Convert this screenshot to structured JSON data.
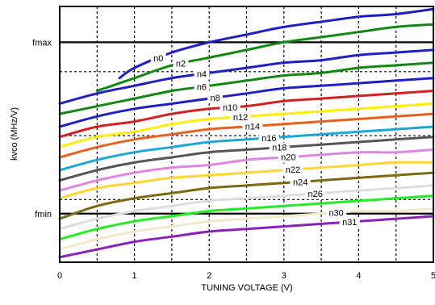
{
  "chart_data": {
    "type": "line",
    "xlabel": "TUNING VOLTAGE (V)",
    "ylabel": "kvco (MHz/V)",
    "xlim": [
      0,
      5
    ],
    "ylim": [
      0,
      1
    ],
    "x_ticks": [
      "0",
      "1",
      "2",
      "3",
      "4",
      "5"
    ],
    "grid": "dashed",
    "reference_lines": [
      {
        "label": "fmax",
        "y": 0.86
      },
      {
        "label": "fmin",
        "y": 0.19
      }
    ],
    "series": [
      {
        "name": "n0",
        "color": "#1f1fc8",
        "x": [
          0.8,
          1.0,
          1.5,
          2.0,
          2.5,
          3.0,
          3.5,
          4.0,
          4.5,
          5.0
        ],
        "y": [
          0.72,
          0.76,
          0.82,
          0.86,
          0.89,
          0.92,
          0.94,
          0.96,
          0.97,
          0.99
        ]
      },
      {
        "name": "n2",
        "color": "#118811",
        "x": [
          0.5,
          1.0,
          1.5,
          2.0,
          2.5,
          3.0,
          3.5,
          4.0,
          4.5,
          5.0
        ],
        "y": [
          0.67,
          0.72,
          0.77,
          0.8,
          0.83,
          0.86,
          0.88,
          0.9,
          0.92,
          0.93
        ]
      },
      {
        "name": "n4",
        "color": "#1f1fc8",
        "x": [
          0.0,
          0.5,
          1.0,
          1.5,
          2.0,
          2.5,
          3.0,
          3.5,
          4.0,
          4.5,
          5.0
        ],
        "y": [
          0.62,
          0.66,
          0.69,
          0.72,
          0.74,
          0.76,
          0.78,
          0.79,
          0.81,
          0.82,
          0.83
        ]
      },
      {
        "name": "n6",
        "color": "#118811",
        "x": [
          0.0,
          0.5,
          1.0,
          1.5,
          2.0,
          2.5,
          3.0,
          3.5,
          4.0,
          4.5,
          5.0
        ],
        "y": [
          0.58,
          0.61,
          0.64,
          0.67,
          0.69,
          0.71,
          0.73,
          0.74,
          0.76,
          0.77,
          0.78
        ]
      },
      {
        "name": "n8",
        "color": "#1f1fc8",
        "x": [
          0.0,
          0.5,
          1.0,
          1.5,
          2.0,
          2.5,
          3.0,
          3.5,
          4.0,
          4.5,
          5.0
        ],
        "y": [
          0.53,
          0.57,
          0.6,
          0.62,
          0.64,
          0.66,
          0.68,
          0.69,
          0.7,
          0.71,
          0.72
        ]
      },
      {
        "name": "n10",
        "color": "#d42020",
        "x": [
          0.0,
          0.5,
          1.0,
          1.5,
          2.0,
          2.5,
          3.0,
          3.5,
          4.0,
          4.5,
          5.0
        ],
        "y": [
          0.49,
          0.53,
          0.55,
          0.58,
          0.6,
          0.61,
          0.63,
          0.64,
          0.65,
          0.66,
          0.67
        ]
      },
      {
        "name": "n12",
        "color": "#ffee00",
        "x": [
          0.0,
          0.5,
          1.0,
          1.5,
          2.0,
          2.5,
          3.0,
          3.5,
          4.0,
          4.5,
          5.0
        ],
        "y": [
          0.45,
          0.49,
          0.51,
          0.54,
          0.56,
          0.57,
          0.58,
          0.59,
          0.6,
          0.61,
          0.62
        ]
      },
      {
        "name": "n14",
        "color": "#e8601c",
        "x": [
          0.0,
          0.5,
          1.0,
          1.5,
          2.0,
          2.5,
          3.0,
          3.5,
          4.0,
          4.5,
          5.0
        ],
        "y": [
          0.41,
          0.45,
          0.48,
          0.5,
          0.52,
          0.53,
          0.54,
          0.55,
          0.56,
          0.57,
          0.58
        ]
      },
      {
        "name": "n16",
        "color": "#1aa8dc",
        "x": [
          0.0,
          0.5,
          1.0,
          1.5,
          2.0,
          2.5,
          3.0,
          3.5,
          4.0,
          4.5,
          5.0
        ],
        "y": [
          0.36,
          0.4,
          0.43,
          0.45,
          0.47,
          0.48,
          0.49,
          0.5,
          0.51,
          0.52,
          0.53
        ]
      },
      {
        "name": "n18",
        "color": "#555555",
        "x": [
          0.0,
          0.5,
          1.0,
          1.5,
          2.0,
          2.5,
          3.0,
          3.5,
          4.0,
          4.5,
          5.0
        ],
        "y": [
          0.32,
          0.36,
          0.39,
          0.41,
          0.43,
          0.44,
          0.45,
          0.46,
          0.47,
          0.48,
          0.49
        ]
      },
      {
        "name": "n20",
        "color": "#dd88dd",
        "x": [
          0.0,
          0.5,
          1.0,
          1.5,
          2.0,
          2.5,
          3.0,
          3.5,
          4.0,
          4.5,
          5.0
        ],
        "y": [
          0.28,
          0.32,
          0.35,
          0.37,
          0.38,
          0.4,
          0.41,
          0.42,
          0.43,
          0.43,
          0.44
        ]
      },
      {
        "name": "n22",
        "color": "#ffd633",
        "x": [
          0.0,
          0.5,
          1.0,
          1.5,
          2.0,
          2.5,
          3.0,
          3.5,
          4.0,
          4.5,
          5.0
        ],
        "y": [
          0.25,
          0.29,
          0.31,
          0.33,
          0.34,
          0.35,
          0.36,
          0.37,
          0.38,
          0.39,
          0.39
        ]
      },
      {
        "name": "n24",
        "color": "#7a6a10",
        "x": [
          0.0,
          0.5,
          1.0,
          1.5,
          2.0,
          2.5,
          3.0,
          3.5,
          4.0,
          4.5,
          5.0
        ],
        "y": [
          0.17,
          0.22,
          0.25,
          0.27,
          0.29,
          0.3,
          0.31,
          0.32,
          0.33,
          0.34,
          0.35
        ]
      },
      {
        "name": "n26",
        "color": "#dddddd",
        "x": [
          0.0,
          0.5,
          1.0,
          1.5,
          2.0,
          2.5,
          3.0,
          3.5,
          4.0,
          4.5,
          5.0
        ],
        "y": [
          0.13,
          0.17,
          0.2,
          0.22,
          0.24,
          0.25,
          0.26,
          0.27,
          0.28,
          0.29,
          0.3
        ]
      },
      {
        "name": "",
        "color": "#22ee22",
        "x": [
          0.0,
          0.5,
          1.0,
          1.5,
          2.0,
          2.5,
          3.0,
          3.5,
          4.0,
          4.5,
          5.0
        ],
        "y": [
          0.09,
          0.13,
          0.16,
          0.18,
          0.2,
          0.21,
          0.22,
          0.23,
          0.24,
          0.25,
          0.26
        ]
      },
      {
        "name": "n30",
        "color": "#f2e8cc",
        "x": [
          0.0,
          0.5,
          1.0,
          1.5,
          2.0,
          2.5,
          3.0,
          3.5,
          4.0,
          4.5,
          5.0
        ],
        "y": [
          0.05,
          0.09,
          0.12,
          0.14,
          0.16,
          0.17,
          0.18,
          0.19,
          0.2,
          0.2,
          0.21
        ]
      },
      {
        "name": "n31",
        "color": "#8822bb",
        "x": [
          0.0,
          0.5,
          1.0,
          1.5,
          2.0,
          2.5,
          3.0,
          3.5,
          4.0,
          4.5,
          5.0
        ],
        "y": [
          0.02,
          0.05,
          0.08,
          0.1,
          0.12,
          0.13,
          0.14,
          0.15,
          0.16,
          0.17,
          0.18
        ]
      }
    ]
  }
}
